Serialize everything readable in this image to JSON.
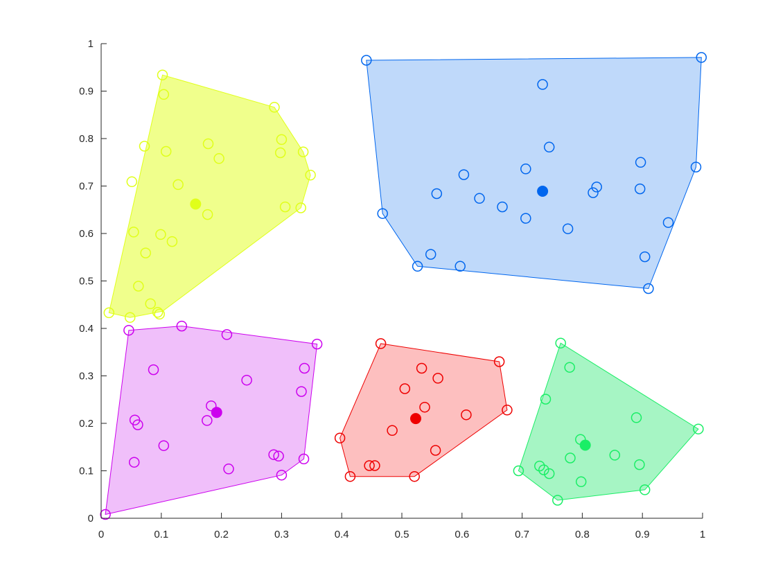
{
  "chart_data": {
    "type": "scatter",
    "title": "",
    "xlabel": "",
    "ylabel": "",
    "xlim": [
      0,
      1
    ],
    "ylim": [
      0,
      1
    ],
    "x_ticks": [
      "0",
      "0.1",
      "0.2",
      "0.3",
      "0.4",
      "0.5",
      "0.6",
      "0.7",
      "0.8",
      "0.9",
      "1"
    ],
    "y_ticks": [
      "0",
      "0.1",
      "0.2",
      "0.3",
      "0.4",
      "0.5",
      "0.6",
      "0.7",
      "0.8",
      "0.9",
      "1"
    ],
    "grid": false,
    "clusters": [
      {
        "color": "#e0ff1a",
        "fill": "#f0ff8c",
        "centroid": [
          0.157,
          0.662
        ],
        "hull": [
          [
            0.102,
            0.934
          ],
          [
            0.288,
            0.866
          ],
          [
            0.336,
            0.772
          ],
          [
            0.348,
            0.723
          ],
          [
            0.332,
            0.654
          ],
          [
            0.102,
            0.436
          ],
          [
            0.048,
            0.423
          ],
          [
            0.013,
            0.433
          ]
        ],
        "points": [
          [
            0.102,
            0.934
          ],
          [
            0.104,
            0.893
          ],
          [
            0.288,
            0.866
          ],
          [
            0.3,
            0.798
          ],
          [
            0.072,
            0.784
          ],
          [
            0.178,
            0.789
          ],
          [
            0.108,
            0.773
          ],
          [
            0.298,
            0.77
          ],
          [
            0.336,
            0.772
          ],
          [
            0.196,
            0.758
          ],
          [
            0.348,
            0.723
          ],
          [
            0.051,
            0.709
          ],
          [
            0.128,
            0.703
          ],
          [
            0.306,
            0.656
          ],
          [
            0.332,
            0.654
          ],
          [
            0.177,
            0.64
          ],
          [
            0.054,
            0.603
          ],
          [
            0.099,
            0.598
          ],
          [
            0.118,
            0.583
          ],
          [
            0.074,
            0.559
          ],
          [
            0.062,
            0.489
          ],
          [
            0.082,
            0.452
          ],
          [
            0.094,
            0.434
          ],
          [
            0.097,
            0.43
          ],
          [
            0.048,
            0.423
          ],
          [
            0.013,
            0.433
          ]
        ]
      },
      {
        "color": "#0066ee",
        "fill": "#bfd9fa",
        "centroid": [
          0.734,
          0.689
        ],
        "hull": [
          [
            0.441,
            0.965
          ],
          [
            0.998,
            0.971
          ],
          [
            0.989,
            0.74
          ],
          [
            0.91,
            0.484
          ],
          [
            0.526,
            0.531
          ],
          [
            0.468,
            0.642
          ]
        ],
        "points": [
          [
            0.441,
            0.965
          ],
          [
            0.998,
            0.971
          ],
          [
            0.734,
            0.914
          ],
          [
            0.745,
            0.782
          ],
          [
            0.897,
            0.75
          ],
          [
            0.989,
            0.74
          ],
          [
            0.706,
            0.736
          ],
          [
            0.603,
            0.724
          ],
          [
            0.824,
            0.698
          ],
          [
            0.896,
            0.694
          ],
          [
            0.818,
            0.686
          ],
          [
            0.558,
            0.684
          ],
          [
            0.629,
            0.674
          ],
          [
            0.667,
            0.656
          ],
          [
            0.468,
            0.642
          ],
          [
            0.943,
            0.623
          ],
          [
            0.706,
            0.632
          ],
          [
            0.776,
            0.61
          ],
          [
            0.548,
            0.556
          ],
          [
            0.904,
            0.551
          ],
          [
            0.526,
            0.531
          ],
          [
            0.597,
            0.531
          ],
          [
            0.91,
            0.484
          ]
        ]
      },
      {
        "color": "#cc00ee",
        "fill": "#f0bffa",
        "centroid": [
          0.192,
          0.223
        ],
        "hull": [
          [
            0.046,
            0.396
          ],
          [
            0.134,
            0.405
          ],
          [
            0.359,
            0.367
          ],
          [
            0.337,
            0.125
          ],
          [
            0.3,
            0.091
          ],
          [
            0.007,
            0.008
          ]
        ],
        "points": [
          [
            0.046,
            0.396
          ],
          [
            0.134,
            0.405
          ],
          [
            0.209,
            0.387
          ],
          [
            0.359,
            0.367
          ],
          [
            0.087,
            0.313
          ],
          [
            0.338,
            0.316
          ],
          [
            0.242,
            0.291
          ],
          [
            0.333,
            0.267
          ],
          [
            0.183,
            0.237
          ],
          [
            0.056,
            0.207
          ],
          [
            0.176,
            0.206
          ],
          [
            0.061,
            0.197
          ],
          [
            0.104,
            0.153
          ],
          [
            0.287,
            0.134
          ],
          [
            0.295,
            0.131
          ],
          [
            0.055,
            0.118
          ],
          [
            0.337,
            0.125
          ],
          [
            0.212,
            0.104
          ],
          [
            0.3,
            0.091
          ],
          [
            0.007,
            0.008
          ]
        ]
      },
      {
        "color": "#ee0000",
        "fill": "#fdbfbf",
        "centroid": [
          0.523,
          0.21
        ],
        "hull": [
          [
            0.465,
            0.368
          ],
          [
            0.662,
            0.33
          ],
          [
            0.675,
            0.228
          ],
          [
            0.521,
            0.088
          ],
          [
            0.414,
            0.088
          ],
          [
            0.397,
            0.169
          ]
        ],
        "points": [
          [
            0.465,
            0.368
          ],
          [
            0.662,
            0.33
          ],
          [
            0.533,
            0.316
          ],
          [
            0.56,
            0.295
          ],
          [
            0.505,
            0.273
          ],
          [
            0.538,
            0.234
          ],
          [
            0.675,
            0.228
          ],
          [
            0.607,
            0.218
          ],
          [
            0.397,
            0.169
          ],
          [
            0.484,
            0.185
          ],
          [
            0.556,
            0.143
          ],
          [
            0.446,
            0.111
          ],
          [
            0.455,
            0.111
          ],
          [
            0.414,
            0.088
          ],
          [
            0.521,
            0.088
          ]
        ]
      },
      {
        "color": "#1aee66",
        "fill": "#a6f5c4",
        "centroid": [
          0.805,
          0.154
        ],
        "hull": [
          [
            0.764,
            0.369
          ],
          [
            0.993,
            0.188
          ],
          [
            0.904,
            0.06
          ],
          [
            0.759,
            0.038
          ],
          [
            0.694,
            0.1
          ]
        ],
        "points": [
          [
            0.764,
            0.369
          ],
          [
            0.779,
            0.318
          ],
          [
            0.739,
            0.251
          ],
          [
            0.89,
            0.212
          ],
          [
            0.993,
            0.188
          ],
          [
            0.797,
            0.166
          ],
          [
            0.854,
            0.133
          ],
          [
            0.78,
            0.127
          ],
          [
            0.895,
            0.113
          ],
          [
            0.729,
            0.11
          ],
          [
            0.736,
            0.102
          ],
          [
            0.745,
            0.094
          ],
          [
            0.694,
            0.1
          ],
          [
            0.798,
            0.077
          ],
          [
            0.904,
            0.06
          ],
          [
            0.759,
            0.038
          ]
        ]
      }
    ]
  }
}
